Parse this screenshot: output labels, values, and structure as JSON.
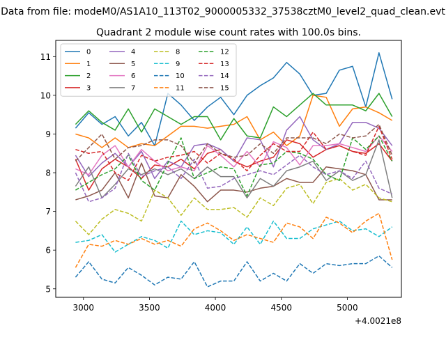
{
  "figure": {
    "suptitle": "Data from file: modeM0/AS1A10_113T02_9000005332_37538cztM0_level2_quad_clean.evt",
    "offset_text": "+4.0021e8"
  },
  "chart_data": {
    "type": "line",
    "title": "Quadrant 2 module wise count rates with 100.0s bins.",
    "xlabel": "",
    "ylabel": "",
    "x_offset": 400210000,
    "xlim": [
      2790,
      5410
    ],
    "ylim": [
      4.78,
      11.42
    ],
    "x_ticks": [
      3000,
      3500,
      4000,
      4500,
      5000
    ],
    "y_ticks": [
      5,
      6,
      7,
      8,
      9,
      10,
      11
    ],
    "grid": false,
    "legend_placement": "top-left",
    "legend_columns": 4,
    "x": [
      2940,
      3040,
      3140,
      3240,
      3340,
      3440,
      3540,
      3640,
      3740,
      3840,
      3940,
      4040,
      4140,
      4240,
      4340,
      4440,
      4540,
      4640,
      4740,
      4840,
      4940,
      5040,
      5140,
      5240,
      5340
    ],
    "series": [
      {
        "name": "0",
        "color": "#1f77b4",
        "dash": "solid",
        "values": [
          9.15,
          9.55,
          9.25,
          9.45,
          8.95,
          9.3,
          8.7,
          10.05,
          9.75,
          9.35,
          9.7,
          9.95,
          9.5,
          10.0,
          10.25,
          10.45,
          10.85,
          10.55,
          10.0,
          10.05,
          10.65,
          10.75,
          9.7,
          11.1,
          9.9
        ]
      },
      {
        "name": "1",
        "color": "#ff7f0e",
        "dash": "solid",
        "values": [
          9.0,
          8.9,
          8.65,
          8.9,
          8.65,
          8.75,
          8.7,
          8.95,
          9.2,
          9.2,
          9.15,
          9.2,
          9.25,
          9.45,
          8.85,
          9.05,
          8.7,
          8.95,
          10.0,
          9.95,
          9.2,
          9.65,
          9.7,
          9.55,
          9.35
        ]
      },
      {
        "name": "2",
        "color": "#2ca02c",
        "dash": "solid",
        "values": [
          9.25,
          9.6,
          9.3,
          9.1,
          9.65,
          9.05,
          9.65,
          9.45,
          9.25,
          9.45,
          9.45,
          8.85,
          9.4,
          8.95,
          8.9,
          9.7,
          9.45,
          9.75,
          10.05,
          9.75,
          9.75,
          9.75,
          9.6,
          10.05,
          9.45
        ]
      },
      {
        "name": "3",
        "color": "#d62728",
        "dash": "solid",
        "values": [
          8.35,
          7.55,
          8.1,
          8.35,
          8.15,
          7.85,
          8.2,
          8.15,
          8.35,
          8.1,
          8.5,
          8.6,
          8.3,
          8.15,
          8.3,
          8.4,
          8.85,
          8.75,
          8.4,
          8.6,
          8.7,
          8.55,
          8.5,
          8.75,
          8.3
        ]
      },
      {
        "name": "4",
        "color": "#9467bd",
        "dash": "solid",
        "values": [
          8.45,
          7.9,
          8.25,
          8.5,
          8.15,
          8.55,
          7.85,
          8.3,
          8.15,
          8.7,
          8.75,
          8.6,
          8.3,
          8.9,
          8.85,
          8.15,
          9.1,
          9.45,
          8.85,
          8.6,
          8.75,
          9.3,
          9.3,
          9.15,
          8.7
        ]
      },
      {
        "name": "5",
        "color": "#8c564b",
        "dash": "solid",
        "values": [
          7.3,
          7.4,
          7.55,
          8.0,
          7.35,
          8.25,
          7.4,
          7.35,
          7.95,
          7.65,
          7.25,
          7.55,
          7.55,
          7.5,
          7.6,
          7.65,
          7.85,
          7.75,
          7.75,
          8.15,
          8.1,
          8.05,
          7.95,
          7.3,
          7.3
        ]
      },
      {
        "name": "6",
        "color": "#e377c2",
        "dash": "solid",
        "values": [
          8.1,
          7.95,
          8.45,
          8.7,
          8.15,
          8.6,
          8.3,
          8.05,
          8.15,
          8.05,
          8.7,
          8.45,
          8.15,
          8.55,
          8.15,
          8.8,
          8.65,
          8.2,
          8.7,
          8.7,
          8.75,
          8.65,
          8.55,
          8.95,
          8.55
        ]
      },
      {
        "name": "7",
        "color": "#7f7f7f",
        "dash": "solid",
        "values": [
          7.65,
          8.15,
          7.35,
          7.7,
          8.1,
          7.95,
          8.1,
          7.95,
          8.1,
          7.85,
          8.15,
          7.9,
          7.9,
          7.35,
          7.85,
          7.65,
          8.05,
          8.15,
          8.3,
          7.8,
          8.05,
          7.8,
          7.95,
          8.85,
          7.35
        ]
      },
      {
        "name": "8",
        "color": "#bcbd22",
        "dash": "dashed",
        "values": [
          6.75,
          6.4,
          6.8,
          7.05,
          6.95,
          6.75,
          7.55,
          7.35,
          6.9,
          7.35,
          7.05,
          7.05,
          7.1,
          6.85,
          7.35,
          7.15,
          7.6,
          7.7,
          7.2,
          7.75,
          7.85,
          7.55,
          7.7,
          7.35,
          7.25
        ]
      },
      {
        "name": "9",
        "color": "#17becf",
        "dash": "dashed",
        "values": [
          6.2,
          6.25,
          6.4,
          5.95,
          6.15,
          6.35,
          6.25,
          6.05,
          6.75,
          6.4,
          6.5,
          6.45,
          6.15,
          6.6,
          6.15,
          6.75,
          6.3,
          6.3,
          6.55,
          6.65,
          6.75,
          6.5,
          6.55,
          6.35,
          6.6
        ]
      },
      {
        "name": "10",
        "color": "#1f77b4",
        "dash": "dashed",
        "values": [
          5.3,
          5.7,
          5.25,
          5.15,
          5.55,
          5.35,
          5.1,
          5.3,
          5.25,
          5.7,
          5.05,
          5.2,
          5.2,
          5.7,
          5.2,
          5.4,
          5.2,
          5.65,
          5.4,
          5.65,
          5.6,
          5.65,
          5.65,
          5.85,
          5.55
        ]
      },
      {
        "name": "11",
        "color": "#ff7f0e",
        "dash": "dashed",
        "values": [
          5.55,
          6.15,
          6.1,
          6.25,
          6.15,
          6.3,
          6.15,
          6.25,
          6.1,
          6.55,
          6.7,
          6.5,
          6.25,
          6.4,
          6.3,
          6.2,
          6.7,
          6.6,
          6.3,
          6.85,
          6.7,
          6.45,
          6.75,
          6.95,
          5.75
        ]
      },
      {
        "name": "12",
        "color": "#2ca02c",
        "dash": "dashed",
        "values": [
          7.55,
          7.75,
          7.95,
          8.1,
          8.45,
          7.8,
          7.55,
          8.25,
          8.9,
          7.85,
          8.0,
          8.15,
          8.1,
          7.4,
          8.2,
          8.25,
          8.55,
          8.5,
          8.35,
          7.95,
          7.8,
          8.9,
          8.6,
          8.95,
          8.3
        ]
      },
      {
        "name": "13",
        "color": "#d62728",
        "dash": "dashed",
        "values": [
          8.6,
          8.5,
          8.55,
          8.0,
          7.8,
          8.45,
          8.3,
          8.4,
          8.45,
          8.55,
          8.25,
          8.5,
          8.35,
          8.05,
          8.45,
          8.75,
          8.55,
          8.55,
          9.05,
          8.6,
          8.7,
          8.55,
          8.45,
          9.2,
          8.35
        ]
      },
      {
        "name": "14",
        "color": "#9467bd",
        "dash": "dashed",
        "values": [
          8.0,
          7.25,
          7.35,
          7.6,
          8.5,
          7.9,
          8.05,
          8.15,
          7.85,
          8.35,
          7.6,
          7.65,
          7.85,
          7.95,
          8.05,
          7.95,
          8.2,
          8.45,
          8.15,
          7.95,
          8.05,
          7.85,
          8.3,
          7.6,
          7.45
        ]
      },
      {
        "name": "15",
        "color": "#8c564b",
        "dash": "dashed",
        "values": [
          8.3,
          8.65,
          9.0,
          8.35,
          8.65,
          8.7,
          8.85,
          8.85,
          8.7,
          8.25,
          8.75,
          8.5,
          8.4,
          8.45,
          8.75,
          8.5,
          8.9,
          8.9,
          8.9,
          8.75,
          9.0,
          8.9,
          8.95,
          9.25,
          8.45
        ]
      }
    ]
  }
}
